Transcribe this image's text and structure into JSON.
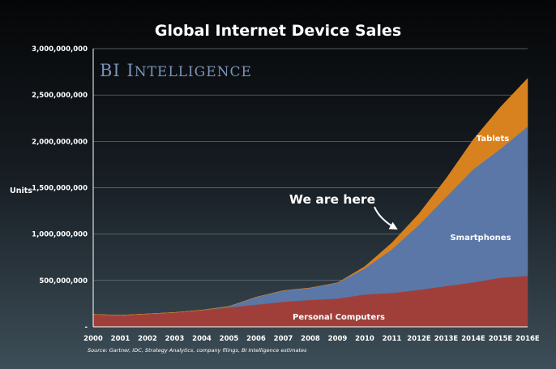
{
  "chart_data": {
    "type": "area",
    "stacked": true,
    "title": "Global Internet Device Sales",
    "brand": "BI Intelligence",
    "ylabel": "Units",
    "xlabel": "",
    "ylim": [
      0,
      3000000000
    ],
    "yticks": [
      0,
      500000000,
      1000000000,
      1500000000,
      2000000000,
      2500000000,
      3000000000
    ],
    "ytick_labels": [
      "-",
      "500,000,000",
      "1,000,000,000",
      "1,500,000,000",
      "2,000,000,000",
      "2,500,000,000",
      "3,000,000,000"
    ],
    "grid": true,
    "categories": [
      "2000",
      "2001",
      "2002",
      "2003",
      "2004",
      "2005",
      "2006",
      "2007",
      "2008",
      "2009",
      "2010",
      "2011",
      "2012E",
      "2013E",
      "2014E",
      "2015E",
      "2016E"
    ],
    "series": [
      {
        "name": "Personal Computers",
        "color": "#a03f3a",
        "values": [
          135000000,
          125000000,
          140000000,
          155000000,
          180000000,
          210000000,
          240000000,
          270000000,
          290000000,
          305000000,
          350000000,
          365000000,
          400000000,
          440000000,
          480000000,
          530000000,
          550000000
        ]
      },
      {
        "name": "Smartphones",
        "color": "#5a77a8",
        "values": [
          0,
          0,
          0,
          0,
          0,
          10000000,
          80000000,
          120000000,
          130000000,
          170000000,
          280000000,
          470000000,
          700000000,
          960000000,
          1220000000,
          1390000000,
          1610000000
        ]
      },
      {
        "name": "Tablets",
        "color": "#d8821f",
        "values": [
          0,
          0,
          0,
          0,
          0,
          0,
          0,
          0,
          0,
          0,
          20000000,
          70000000,
          120000000,
          200000000,
          320000000,
          450000000,
          520000000
        ]
      }
    ],
    "annotation": {
      "text": "We are here",
      "at_category": "2011"
    },
    "source": "Source: Gartner, IDC, Strategy Analytics, company filings, BI Intelligence estimates"
  }
}
